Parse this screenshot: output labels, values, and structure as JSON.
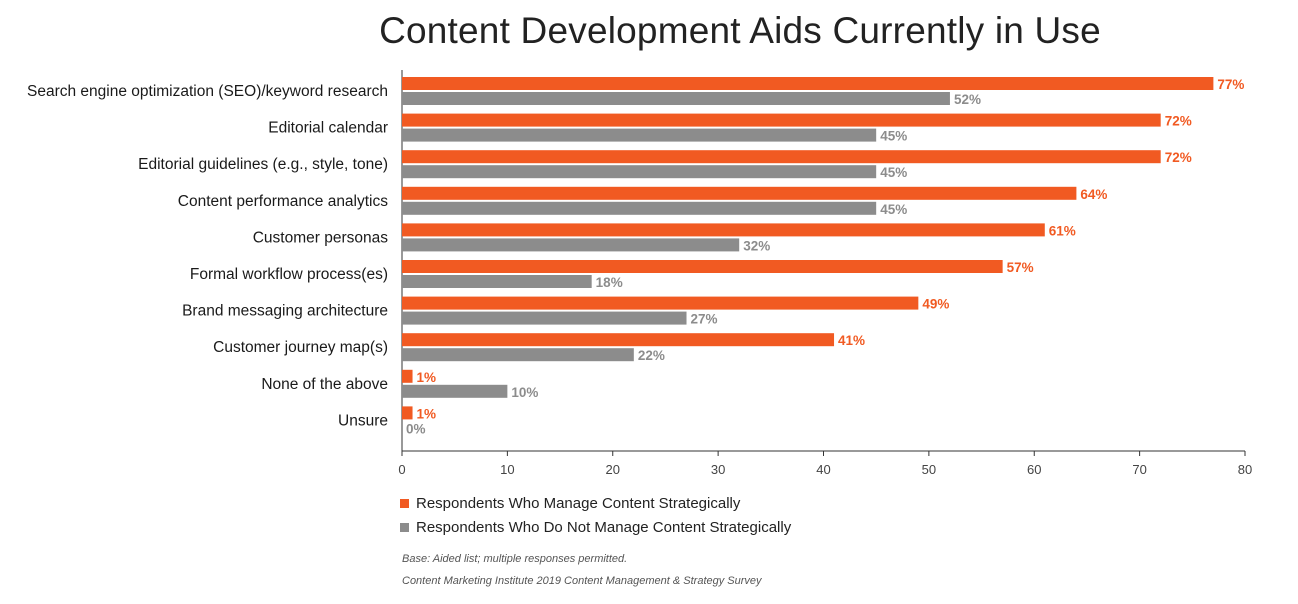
{
  "chart_data": {
    "type": "bar",
    "orientation": "horizontal",
    "title": "Content Development Aids Currently in Use",
    "categories": [
      "Search engine optimization (SEO)/keyword research",
      "Editorial calendar",
      "Editorial guidelines (e.g., style, tone)",
      "Content performance analytics",
      "Customer personas",
      "Formal workflow process(es)",
      "Brand messaging architecture",
      "Customer journey map(s)",
      "None of the above",
      "Unsure"
    ],
    "series": [
      {
        "name": "Respondents Who Manage Content Strategically",
        "color": "#f15a22",
        "values": [
          77,
          72,
          72,
          64,
          61,
          57,
          49,
          41,
          1,
          1
        ],
        "labels": [
          "77%",
          "72%",
          "72%",
          "64%",
          "61%",
          "57%",
          "49%",
          "41%",
          "1%",
          "1%"
        ]
      },
      {
        "name": "Respondents Who Do Not Manage Content Strategically",
        "color": "#8c8c8c",
        "values": [
          52,
          45,
          45,
          45,
          32,
          18,
          27,
          22,
          10,
          0
        ],
        "labels": [
          "52%",
          "45%",
          "45%",
          "45%",
          "32%",
          "18%",
          "27%",
          "22%",
          "10%",
          "0%"
        ]
      }
    ],
    "xlim": [
      0,
      80
    ],
    "xticks": [
      "0",
      "10",
      "20",
      "30",
      "40",
      "50",
      "60",
      "70",
      "80"
    ],
    "legend_position": "bottom-left",
    "grid": false
  },
  "notes": {
    "base": "Base: Aided list; multiple responses permitted.",
    "source": "Content Marketing Institute 2019 Content Management & Strategy Survey"
  }
}
